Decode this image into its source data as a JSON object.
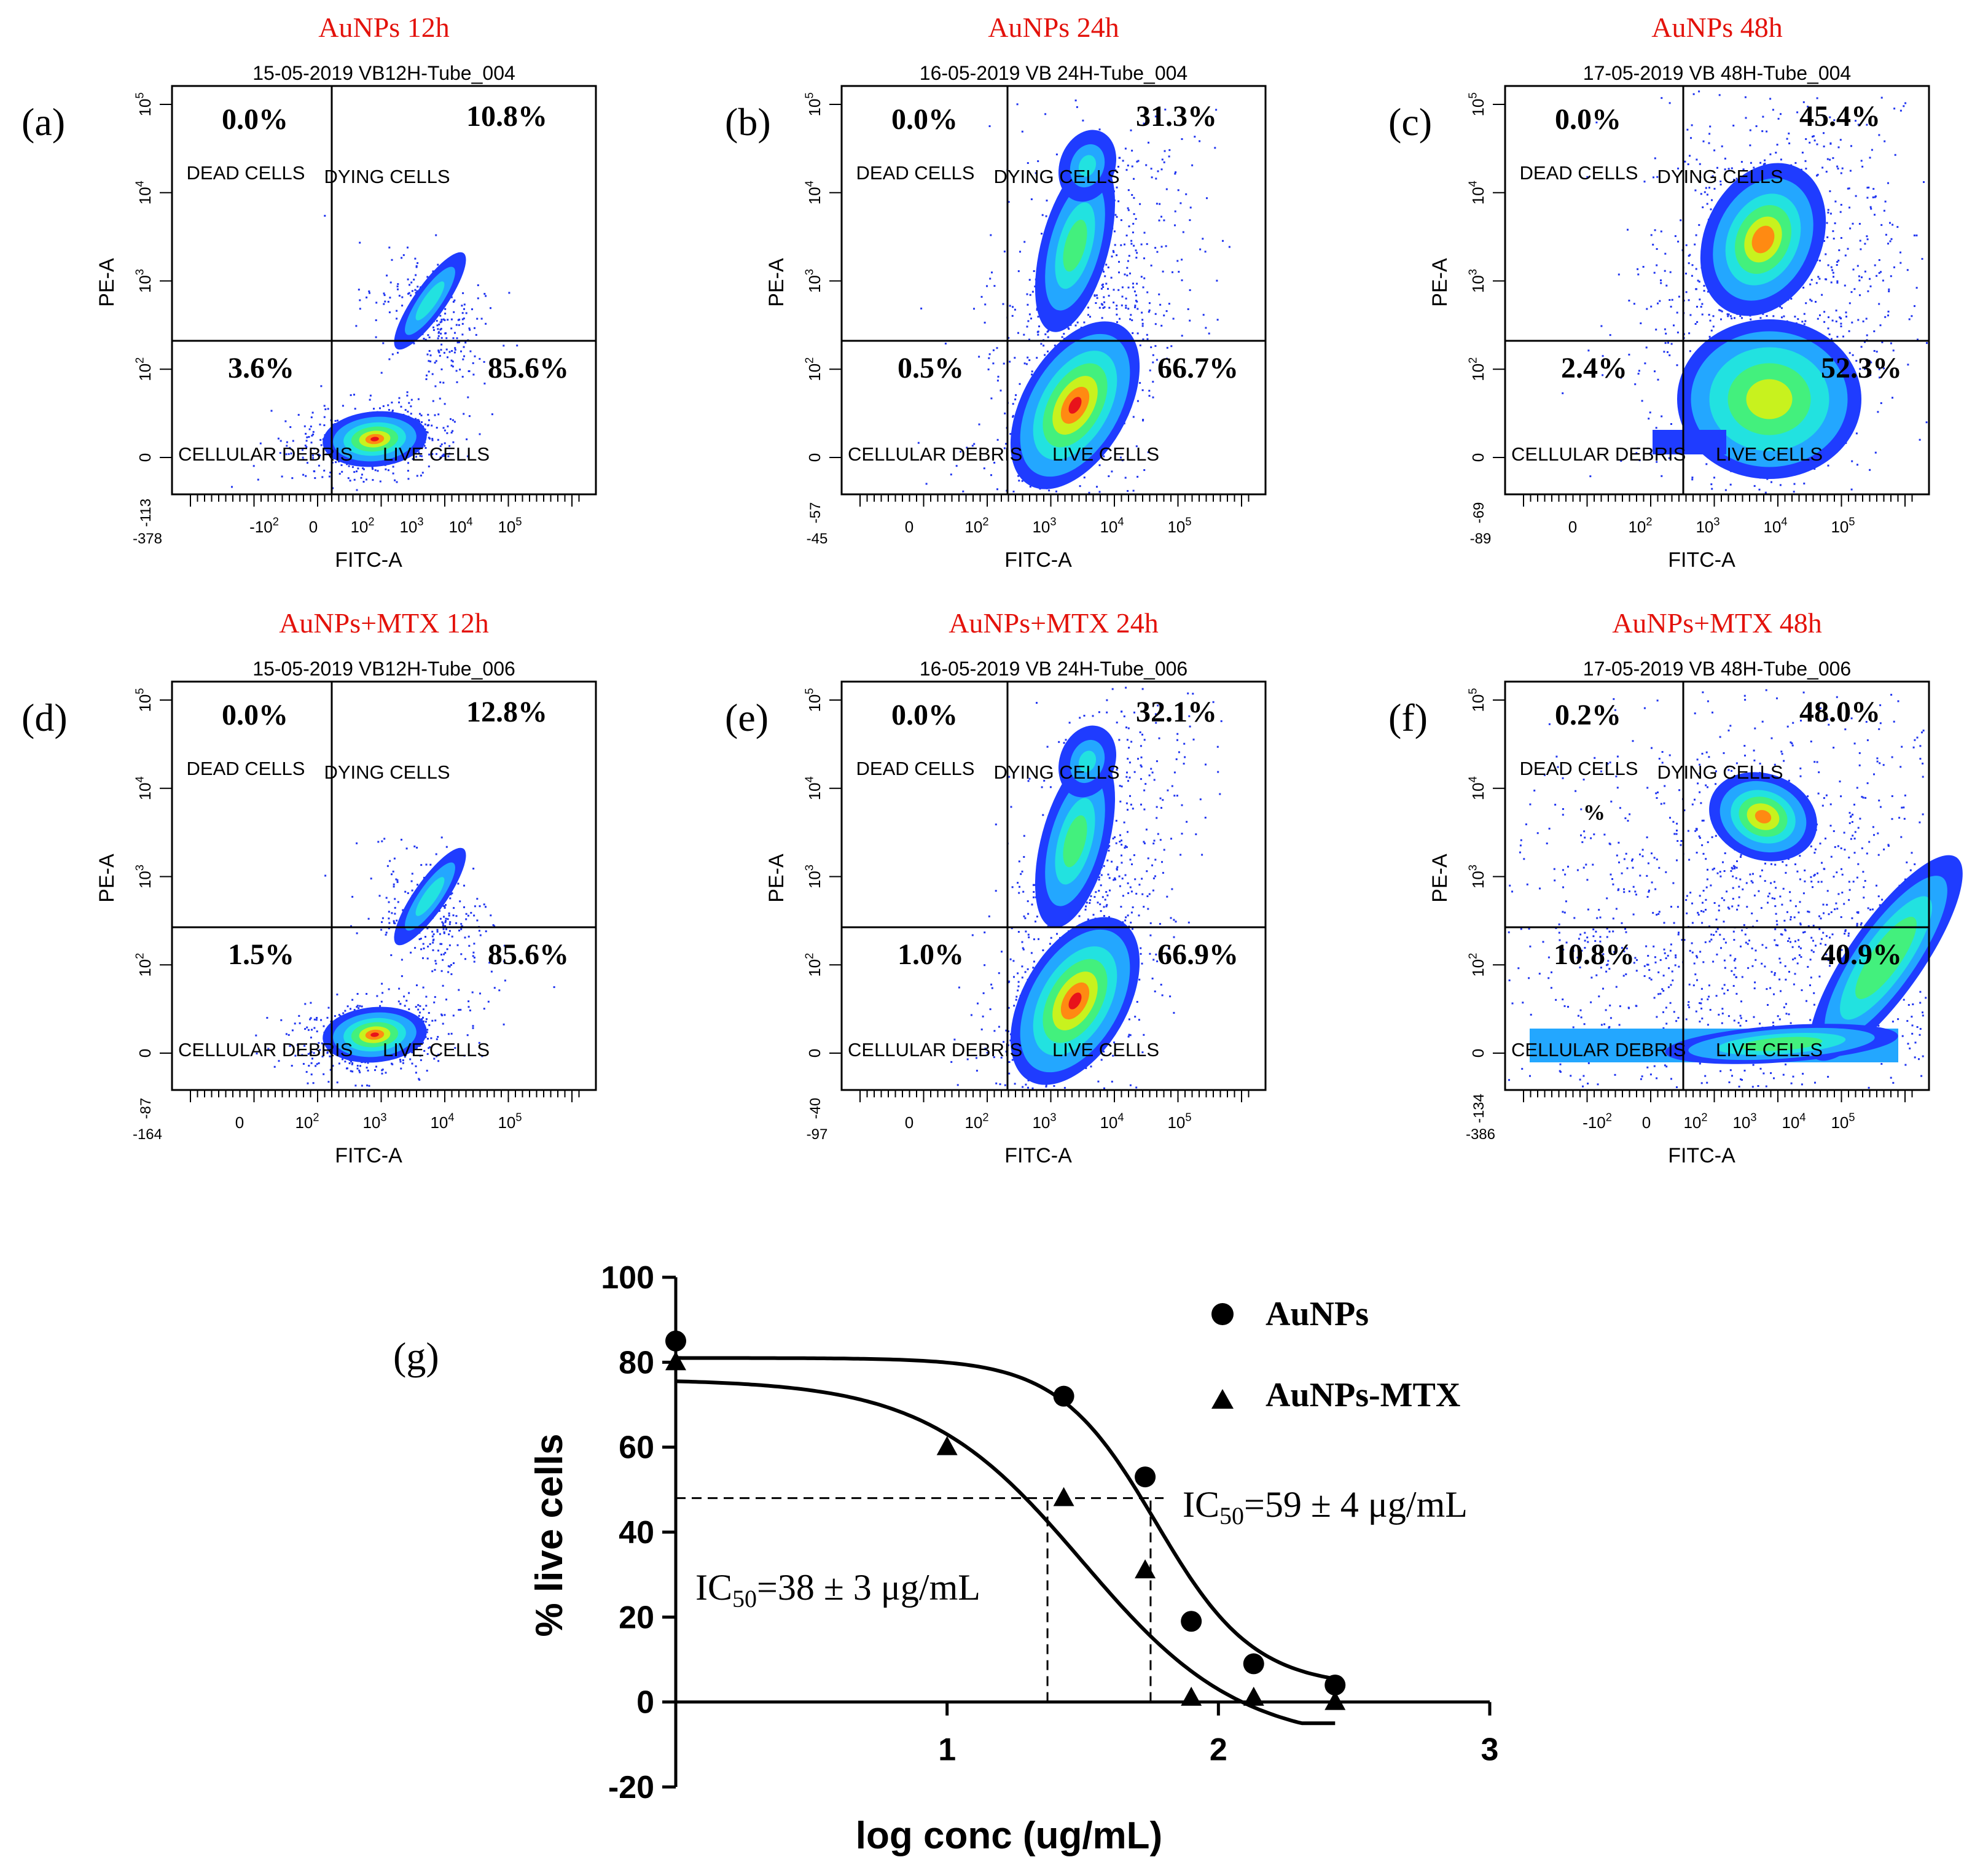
{
  "panels": [
    {
      "letter": "(a)",
      "title": "AuNPs 12h",
      "subtitle": "15-05-2019 VB12H-Tube_004",
      "quadrants": {
        "ul": "0.0%",
        "ur": "10.8%",
        "ll": "3.6%",
        "lr": "85.6%"
      },
      "labels": {
        "ul": "DEAD CELLS",
        "ur": "DYING CELLS",
        "ll": "CELLULAR DEBRIS",
        "lr": "LIVE CELLS"
      },
      "extra_label": "",
      "xaxis": {
        "label": "FITC-A",
        "min": "-378",
        "ticks": [
          "-10^2",
          "0",
          "10^2",
          "10^3",
          "10^4",
          "10^5"
        ]
      },
      "yaxis": {
        "label": "PE-A",
        "min": "-113",
        "ticks": [
          "0",
          "10^2",
          "10^3",
          "10^4",
          "10^5"
        ]
      },
      "population": "live"
    },
    {
      "letter": "(b)",
      "title": "AuNPs 24h",
      "subtitle": "16-05-2019 VB 24H-Tube_004",
      "quadrants": {
        "ul": "0.0%",
        "ur": "31.3%",
        "ll": "0.5%",
        "lr": "66.7%"
      },
      "labels": {
        "ul": "DEAD CELLS",
        "ur": "DYING CELLS",
        "ll": "CELLULAR DEBRIS",
        "lr": "LIVE CELLS"
      },
      "extra_label": "",
      "xaxis": {
        "label": "FITC-A",
        "min": "-45",
        "ticks": [
          "0",
          "10^2",
          "10^3",
          "10^4",
          "10^5"
        ]
      },
      "yaxis": {
        "label": "PE-A",
        "min": "-57",
        "ticks": [
          "0",
          "10^2",
          "10^3",
          "10^4",
          "10^5"
        ]
      },
      "population": "diagonal"
    },
    {
      "letter": "(c)",
      "title": "AuNPs 48h",
      "subtitle": "17-05-2019 VB 48H-Tube_004",
      "quadrants": {
        "ul": "0.0%",
        "ur": "45.4%",
        "ll": "2.4%",
        "lr": "52.3%"
      },
      "labels": {
        "ul": "DEAD CELLS",
        "ur": "DYING CELLS",
        "ll": "CELLULAR DEBRIS",
        "lr": "LIVE CELLS"
      },
      "extra_label": "",
      "xaxis": {
        "label": "FITC-A",
        "min": "-89",
        "ticks": [
          "0",
          "10^2",
          "10^3",
          "10^4",
          "10^5"
        ]
      },
      "yaxis": {
        "label": "PE-A",
        "min": "-69",
        "ticks": [
          "0",
          "10^2",
          "10^3",
          "10^4",
          "10^5"
        ]
      },
      "population": "split"
    },
    {
      "letter": "(d)",
      "title": "AuNPs+MTX 12h",
      "subtitle": "15-05-2019 VB12H-Tube_006",
      "quadrants": {
        "ul": "0.0%",
        "ur": "12.8%",
        "ll": "1.5%",
        "lr": "85.6%"
      },
      "labels": {
        "ul": "DEAD CELLS",
        "ur": "DYING CELLS",
        "ll": "CELLULAR DEBRIS",
        "lr": "LIVE CELLS"
      },
      "extra_label": "",
      "xaxis": {
        "label": "FITC-A",
        "min": "-164",
        "ticks": [
          "0",
          "10^2",
          "10^3",
          "10^4",
          "10^5"
        ]
      },
      "yaxis": {
        "label": "PE-A",
        "min": "-87",
        "ticks": [
          "0",
          "10^2",
          "10^3",
          "10^4",
          "10^5"
        ]
      },
      "population": "live"
    },
    {
      "letter": "(e)",
      "title": "AuNPs+MTX 24h",
      "subtitle": "16-05-2019 VB 24H-Tube_006",
      "quadrants": {
        "ul": "0.0%",
        "ur": "32.1%",
        "ll": "1.0%",
        "lr": "66.9%"
      },
      "labels": {
        "ul": "DEAD CELLS",
        "ur": "DYING CELLS",
        "ll": "CELLULAR DEBRIS",
        "lr": "LIVE CELLS"
      },
      "extra_label": "",
      "xaxis": {
        "label": "FITC-A",
        "min": "-97",
        "ticks": [
          "0",
          "10^2",
          "10^3",
          "10^4",
          "10^5"
        ]
      },
      "yaxis": {
        "label": "PE-A",
        "min": "-40",
        "ticks": [
          "0",
          "10^2",
          "10^3",
          "10^4",
          "10^5"
        ]
      },
      "population": "diagonal"
    },
    {
      "letter": "(f)",
      "title": "AuNPs+MTX 48h",
      "subtitle": "17-05-2019 VB 48H-Tube_006",
      "quadrants": {
        "ul": "0.2%",
        "ur": "48.0%",
        "ll": "10.8%",
        "lr": "40.9%"
      },
      "labels": {
        "ul": "DEAD CELLS",
        "ur": "DYING CELLS",
        "ll": "CELLULAR DEBRIS",
        "lr": "LIVE CELLS"
      },
      "extra_label": "%",
      "xaxis": {
        "label": "FITC-A",
        "min": "-386",
        "ticks": [
          "-10^2",
          "0",
          "10^2",
          "10^3",
          "10^4",
          "10^5"
        ]
      },
      "yaxis": {
        "label": "PE-A",
        "min": "-134",
        "ticks": [
          "0",
          "10^2",
          "10^3",
          "10^4",
          "10^5"
        ]
      },
      "population": "spread"
    }
  ],
  "chart_data": {
    "type": "scatter",
    "panel_letter": "(g)",
    "title": "",
    "xlabel": "log conc (ug/mL)",
    "ylabel": "% live cells",
    "xlim": [
      0,
      3
    ],
    "ylim": [
      -20,
      100
    ],
    "xticks": [
      1,
      2,
      3
    ],
    "yticks": [
      -20,
      0,
      20,
      40,
      60,
      80,
      100
    ],
    "series": [
      {
        "name": "AuNPs",
        "marker": "circle",
        "x": [
          0.0,
          1.43,
          1.73,
          1.9,
          2.13,
          2.43
        ],
        "y": [
          85,
          72,
          53,
          19,
          9,
          4
        ],
        "fit": {
          "top": 81,
          "bottom": 3.5,
          "logIC50": 1.77,
          "hill": -2.4,
          "x_range": [
            0,
            2.43
          ]
        }
      },
      {
        "name": "AuNPs-MTX",
        "marker": "triangle",
        "x": [
          0.0,
          1.0,
          1.43,
          1.73,
          1.9,
          2.13,
          2.43
        ],
        "y": [
          80,
          60,
          48,
          31,
          1,
          1,
          0
        ],
        "fit": {
          "top": 76,
          "bottom": -10,
          "logIC50": 1.5,
          "hill": -1.5,
          "x_range": [
            0,
            2.43
          ]
        }
      }
    ],
    "annotations": [
      {
        "prefix": "IC",
        "sub": "50",
        "text": "=59 ± 4 μg/mL"
      },
      {
        "prefix": "IC",
        "sub": "50",
        "text": "=38 ± 3 μg/mL"
      }
    ],
    "guides": [
      {
        "y": 48,
        "x_from": 0,
        "x_to": 1.73
      },
      {
        "x": 1.37,
        "y_from": 0,
        "y_to": 48
      },
      {
        "x": 1.75,
        "y_from": 0,
        "y_to": 48
      }
    ]
  }
}
